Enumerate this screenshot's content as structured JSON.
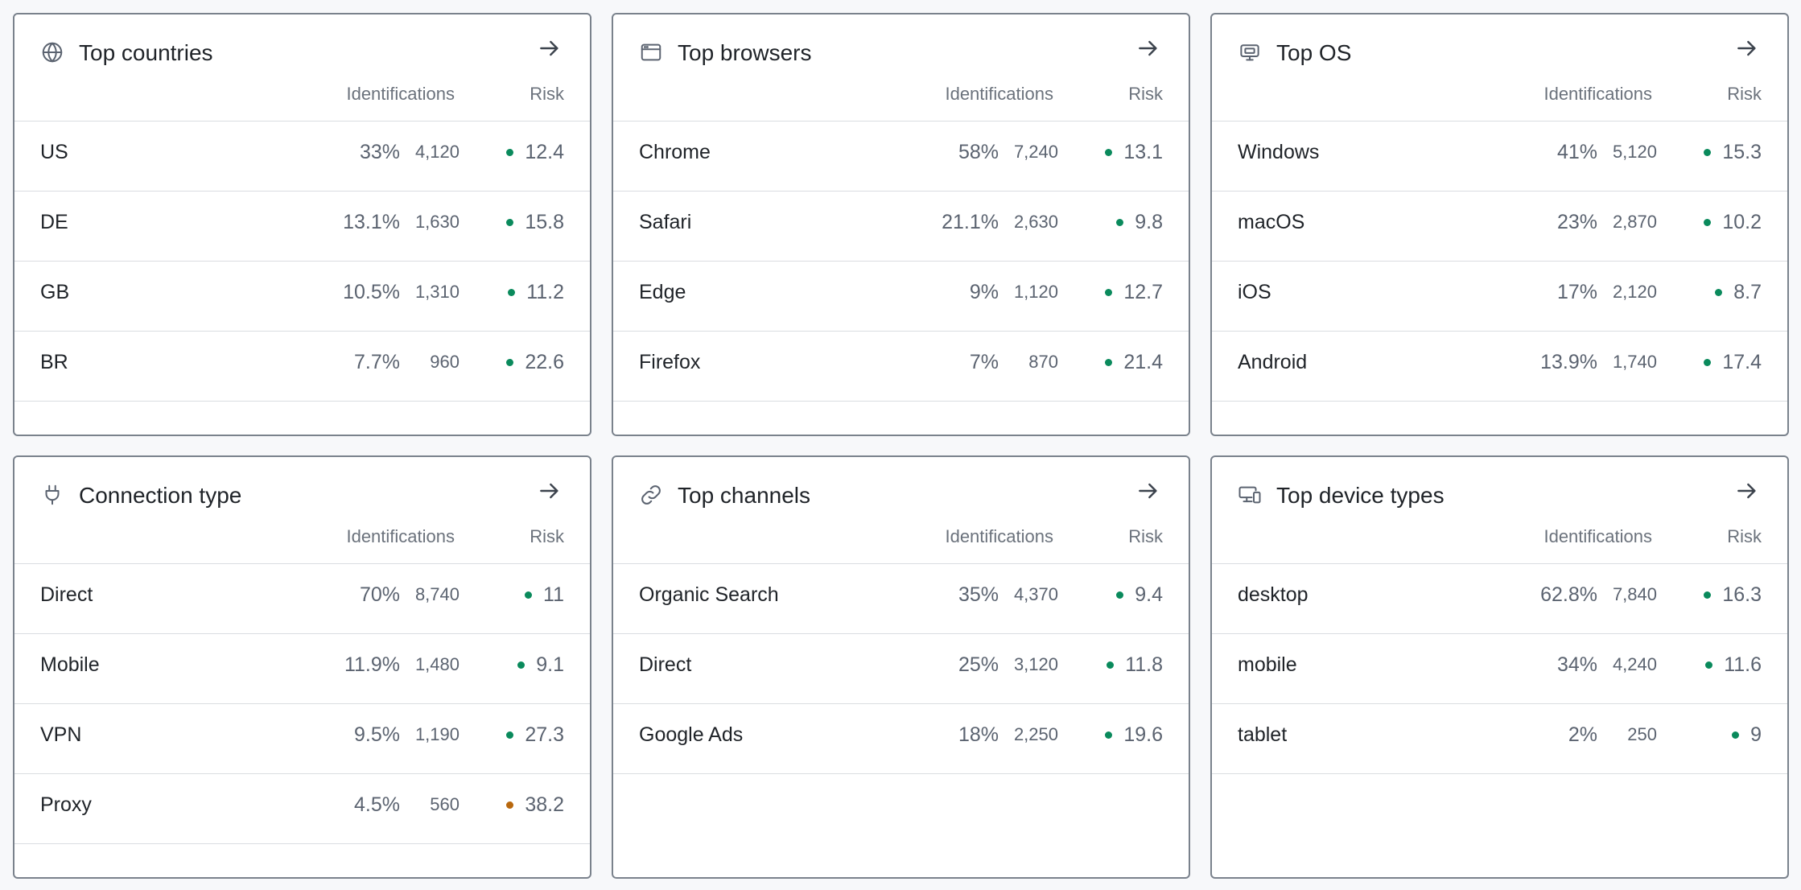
{
  "colors": {
    "risk_low": "#0a8a5c",
    "risk_high": "#b8680e"
  },
  "cards": [
    {
      "id": "countries",
      "icon": "globe-icon",
      "title": "Top countries",
      "col_identifications": "Identifications",
      "col_risk": "Risk",
      "rows": [
        {
          "label": "US",
          "pct": "33%",
          "count": "4,120",
          "risk": "12.4",
          "level": "low"
        },
        {
          "label": "DE",
          "pct": "13.1%",
          "count": "1,630",
          "risk": "15.8",
          "level": "low"
        },
        {
          "label": "GB",
          "pct": "10.5%",
          "count": "1,310",
          "risk": "11.2",
          "level": "low"
        },
        {
          "label": "BR",
          "pct": "7.7%",
          "count": "960",
          "risk": "22.6",
          "level": "low"
        }
      ]
    },
    {
      "id": "browsers",
      "icon": "browser-window-icon",
      "title": "Top browsers",
      "col_identifications": "Identifications",
      "col_risk": "Risk",
      "rows": [
        {
          "label": "Chrome",
          "pct": "58%",
          "count": "7,240",
          "risk": "13.1",
          "level": "low"
        },
        {
          "label": "Safari",
          "pct": "21.1%",
          "count": "2,630",
          "risk": "9.8",
          "level": "low"
        },
        {
          "label": "Edge",
          "pct": "9%",
          "count": "1,120",
          "risk": "12.7",
          "level": "low"
        },
        {
          "label": "Firefox",
          "pct": "7%",
          "count": "870",
          "risk": "21.4",
          "level": "low"
        }
      ]
    },
    {
      "id": "os",
      "icon": "monitor-icon",
      "title": "Top OS",
      "col_identifications": "Identifications",
      "col_risk": "Risk",
      "rows": [
        {
          "label": "Windows",
          "pct": "41%",
          "count": "5,120",
          "risk": "15.3",
          "level": "low"
        },
        {
          "label": "macOS",
          "pct": "23%",
          "count": "2,870",
          "risk": "10.2",
          "level": "low"
        },
        {
          "label": "iOS",
          "pct": "17%",
          "count": "2,120",
          "risk": "8.7",
          "level": "low"
        },
        {
          "label": "Android",
          "pct": "13.9%",
          "count": "1,740",
          "risk": "17.4",
          "level": "low"
        }
      ]
    },
    {
      "id": "connection",
      "icon": "plug-icon",
      "title": "Connection type",
      "col_identifications": "Identifications",
      "col_risk": "Risk",
      "rows": [
        {
          "label": "Direct",
          "pct": "70%",
          "count": "8,740",
          "risk": "11",
          "level": "low"
        },
        {
          "label": "Mobile",
          "pct": "11.9%",
          "count": "1,480",
          "risk": "9.1",
          "level": "low"
        },
        {
          "label": "VPN",
          "pct": "9.5%",
          "count": "1,190",
          "risk": "27.3",
          "level": "low"
        },
        {
          "label": "Proxy",
          "pct": "4.5%",
          "count": "560",
          "risk": "38.2",
          "level": "high"
        }
      ]
    },
    {
      "id": "channels",
      "icon": "link-icon",
      "title": "Top channels",
      "col_identifications": "Identifications",
      "col_risk": "Risk",
      "rows": [
        {
          "label": "Organic Search",
          "pct": "35%",
          "count": "4,370",
          "risk": "9.4",
          "level": "low"
        },
        {
          "label": "Direct",
          "pct": "25%",
          "count": "3,120",
          "risk": "11.8",
          "level": "low"
        },
        {
          "label": "Google Ads",
          "pct": "18%",
          "count": "2,250",
          "risk": "19.6",
          "level": "low"
        }
      ]
    },
    {
      "id": "devices",
      "icon": "devices-icon",
      "title": "Top device types",
      "col_identifications": "Identifications",
      "col_risk": "Risk",
      "rows": [
        {
          "label": "desktop",
          "pct": "62.8%",
          "count": "7,840",
          "risk": "16.3",
          "level": "low"
        },
        {
          "label": "mobile",
          "pct": "34%",
          "count": "4,240",
          "risk": "11.6",
          "level": "low"
        },
        {
          "label": "tablet",
          "pct": "2%",
          "count": "250",
          "risk": "9",
          "level": "low"
        }
      ]
    }
  ]
}
